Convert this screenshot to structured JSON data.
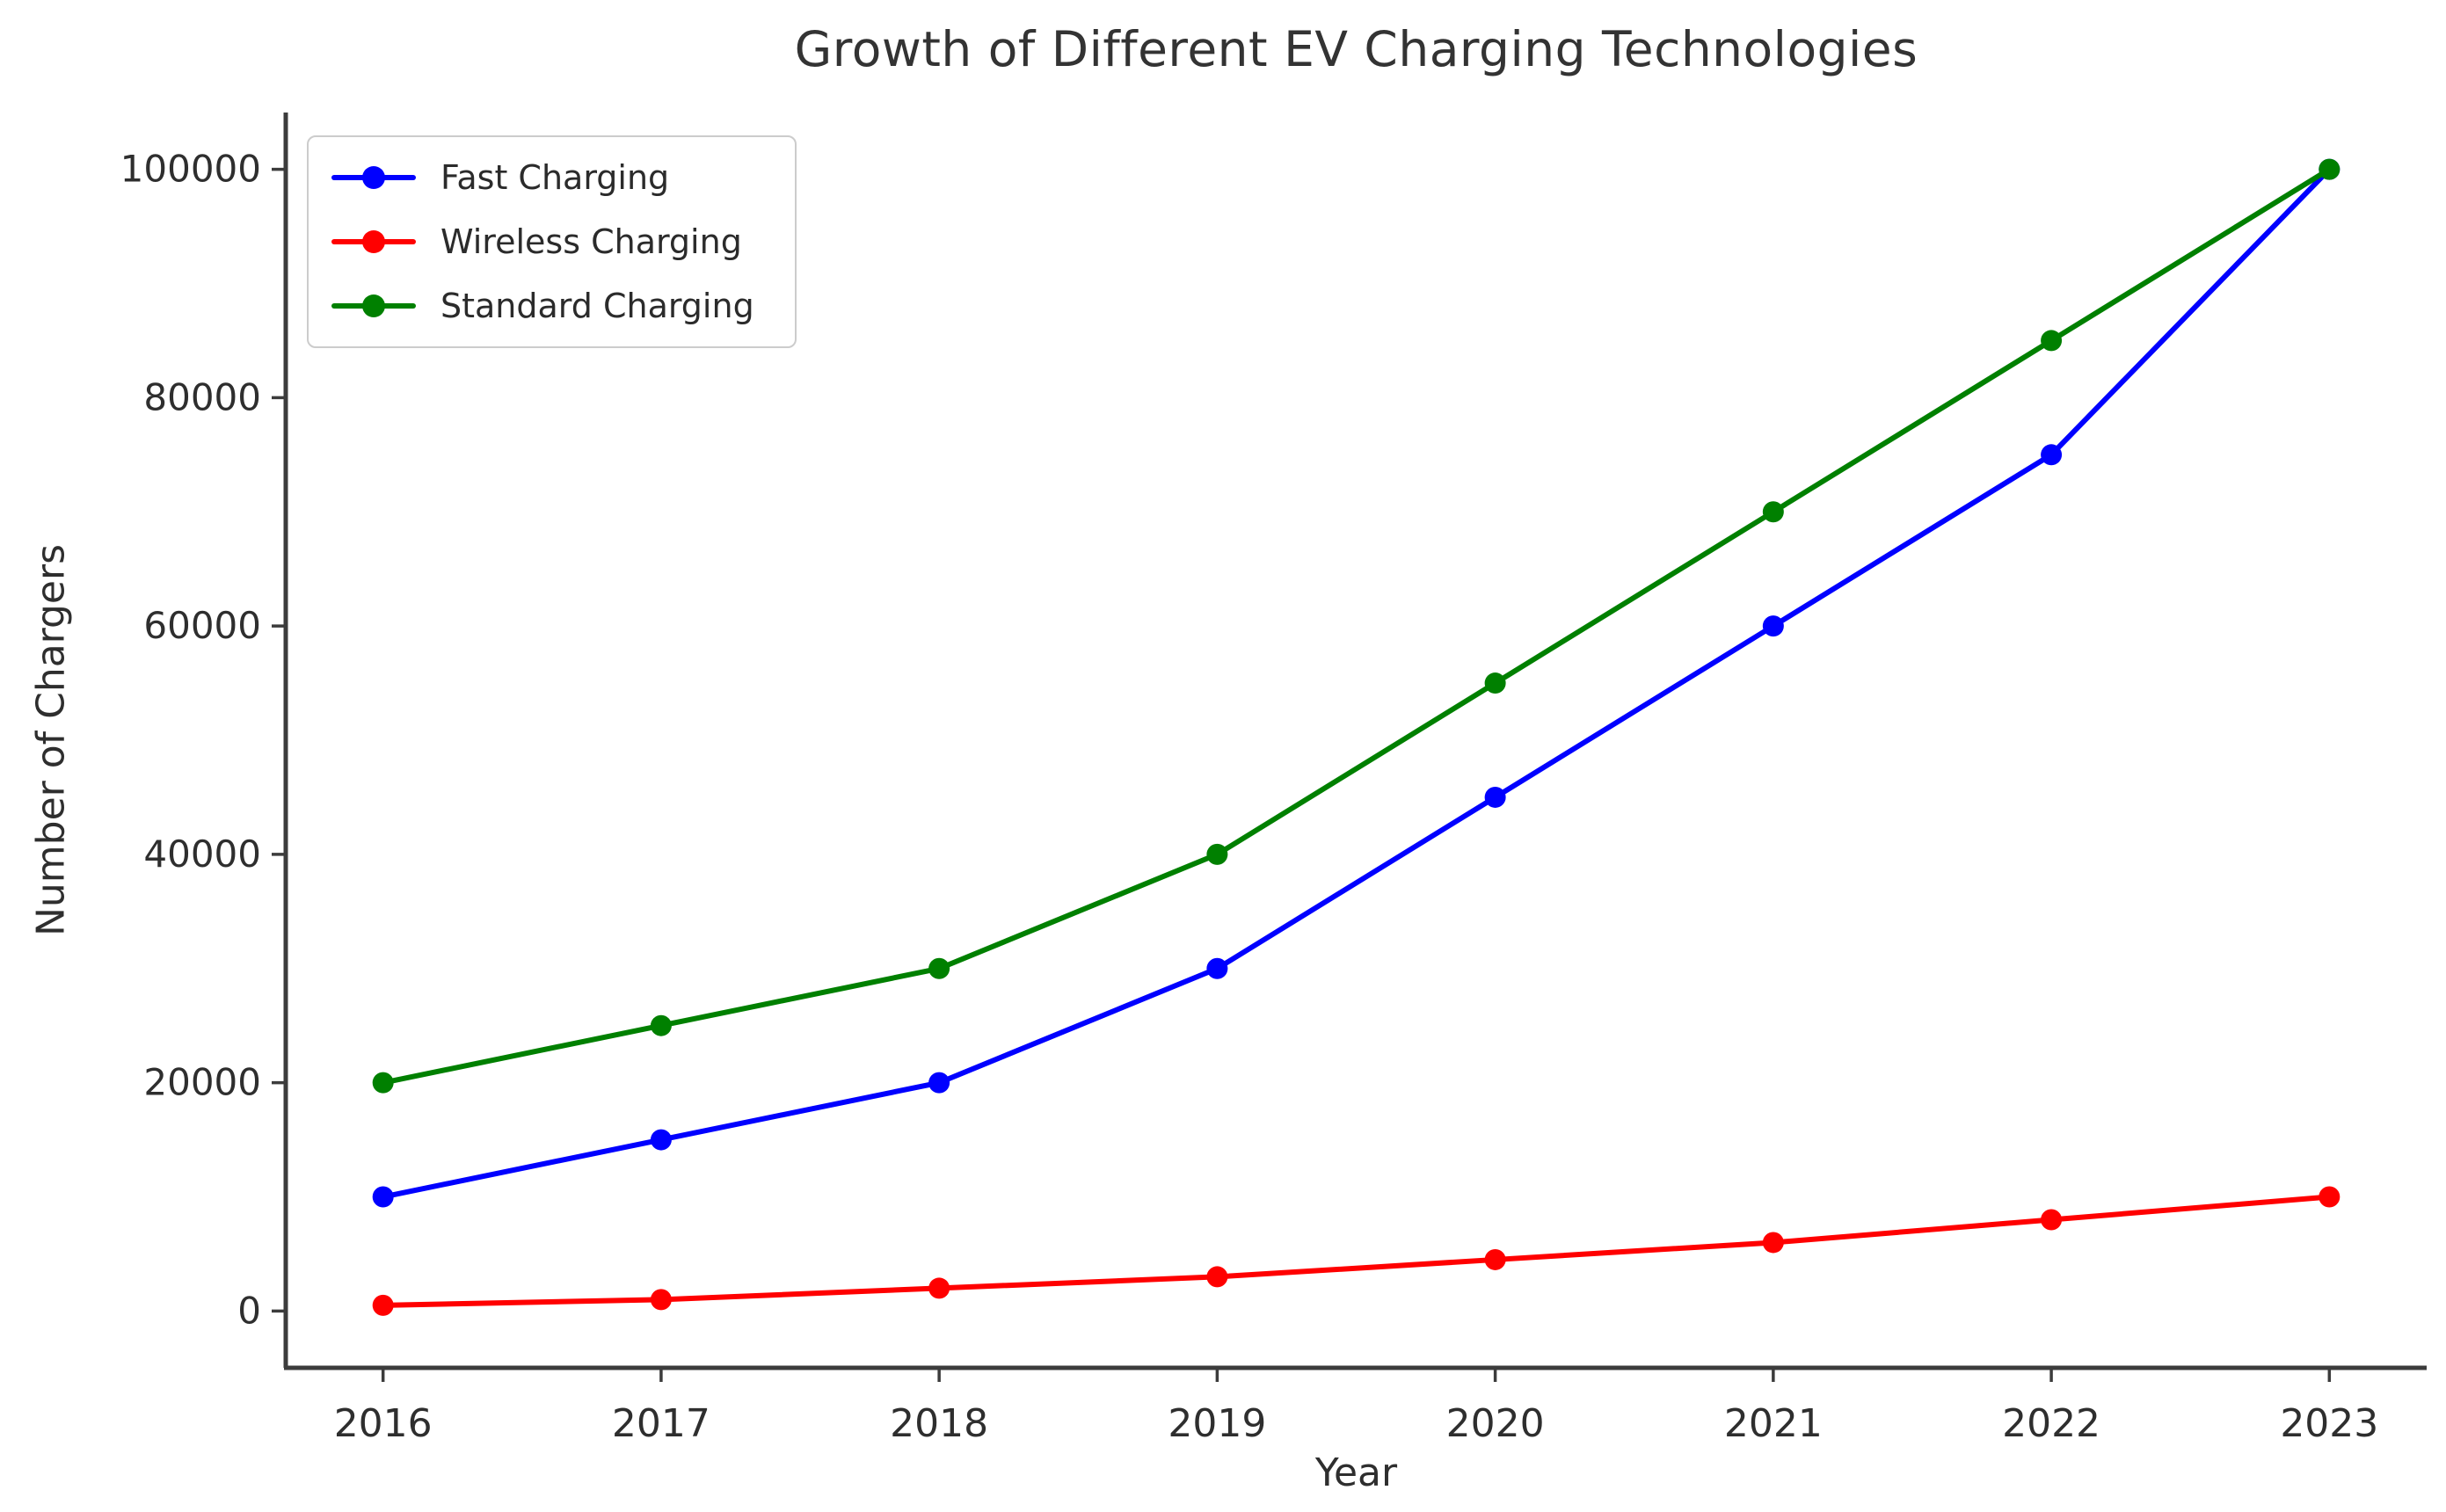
{
  "chart_data": {
    "type": "line",
    "title": "Growth of Different EV Charging Technologies",
    "xlabel": "Year",
    "ylabel": "Number of Chargers",
    "categories": [
      2016,
      2017,
      2018,
      2019,
      2020,
      2021,
      2022,
      2023
    ],
    "x_tick_labels": [
      "2016",
      "2017",
      "2018",
      "2019",
      "2020",
      "2021",
      "2022",
      "2023"
    ],
    "y_ticks": [
      0,
      20000,
      40000,
      60000,
      80000,
      100000
    ],
    "y_tick_labels": [
      "0",
      "20000",
      "40000",
      "60000",
      "80000",
      "100000"
    ],
    "xlim": [
      2015.65,
      2023.35
    ],
    "ylim": [
      -4975,
      104975
    ],
    "grid": false,
    "legend_position": "upper left",
    "marker": "circle",
    "series": [
      {
        "name": "Fast Charging",
        "color": "#0000ff",
        "values": [
          10000,
          15000,
          20000,
          30000,
          45000,
          60000,
          75000,
          100000
        ]
      },
      {
        "name": "Wireless Charging",
        "color": "#ff0000",
        "values": [
          500,
          1000,
          2000,
          3000,
          4500,
          6000,
          8000,
          10000
        ]
      },
      {
        "name": "Standard Charging",
        "color": "#008000",
        "values": [
          20000,
          25000,
          30000,
          40000,
          55000,
          70000,
          85000,
          100000
        ]
      }
    ]
  },
  "colors": {
    "background": "#ffffff",
    "spine": "#3c3c3c",
    "tick_text": "#2e2e2e",
    "title_text": "#333333",
    "legend_border": "#cccccc"
  }
}
